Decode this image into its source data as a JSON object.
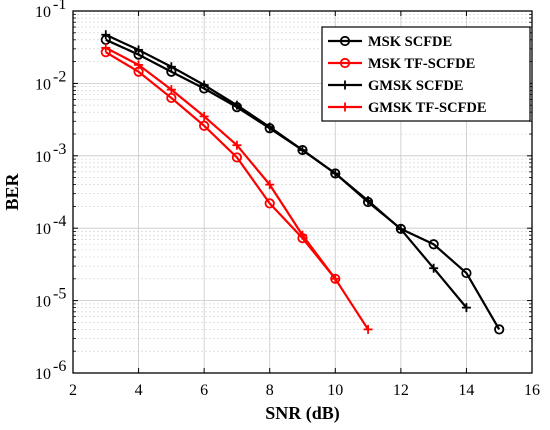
{
  "chart_data": {
    "type": "line",
    "xlabel": "SNR (dB)",
    "ylabel": "BER",
    "xlim": [
      2,
      16
    ],
    "ylim": [
      1e-06,
      0.1
    ],
    "yscale": "log",
    "grid": true,
    "legend_position": "top-right",
    "x_ticks": [
      2,
      4,
      6,
      8,
      10,
      12,
      14,
      16
    ],
    "x_tick_labels": [
      "2",
      "4",
      "6",
      "8",
      "10",
      "12",
      "14",
      "16"
    ],
    "y_ticks": [
      1e-06,
      1e-05,
      0.0001,
      0.001,
      0.01,
      0.1
    ],
    "y_tick_labels": [
      {
        "base": "10",
        "exp": "-6"
      },
      {
        "base": "10",
        "exp": "-5"
      },
      {
        "base": "10",
        "exp": "-4"
      },
      {
        "base": "10",
        "exp": "-3"
      },
      {
        "base": "10",
        "exp": "-2"
      },
      {
        "base": "10",
        "exp": "-1"
      }
    ],
    "series": [
      {
        "name": "MSK  SCFDE",
        "color": "#000000",
        "marker": "circle",
        "x": [
          3,
          4,
          5,
          6,
          7,
          8,
          9,
          10,
          11,
          12,
          13,
          14,
          15
        ],
        "y": [
          0.04,
          0.025,
          0.0145,
          0.0085,
          0.0047,
          0.0024,
          0.0012,
          0.00057,
          0.00023,
          9.8e-05,
          6e-05,
          2.4e-05,
          4e-06
        ]
      },
      {
        "name": "MSK  TF-SCFDE",
        "color": "#ff0000",
        "marker": "circle",
        "x": [
          3,
          4,
          5,
          6,
          7,
          8,
          9,
          10
        ],
        "y": [
          0.027,
          0.0145,
          0.0063,
          0.0026,
          0.00095,
          0.00022,
          7.3e-05,
          2e-05
        ]
      },
      {
        "name": "GMSK SCFDE",
        "color": "#000000",
        "marker": "plus",
        "x": [
          3,
          4,
          5,
          6,
          7,
          8,
          9,
          10,
          11,
          12,
          13,
          14
        ],
        "y": [
          0.047,
          0.029,
          0.017,
          0.0095,
          0.005,
          0.0025,
          0.0012,
          0.00057,
          0.00024,
          9.7e-05,
          2.8e-05,
          8e-06
        ]
      },
      {
        "name": "GMSK TF-SCFDE",
        "color": "#ff0000",
        "marker": "plus",
        "x": [
          3,
          4,
          5,
          6,
          7,
          8,
          9,
          10,
          11
        ],
        "y": [
          0.031,
          0.018,
          0.0082,
          0.0035,
          0.0014,
          0.0004,
          8e-05,
          2e-05,
          4e-06
        ]
      }
    ]
  }
}
